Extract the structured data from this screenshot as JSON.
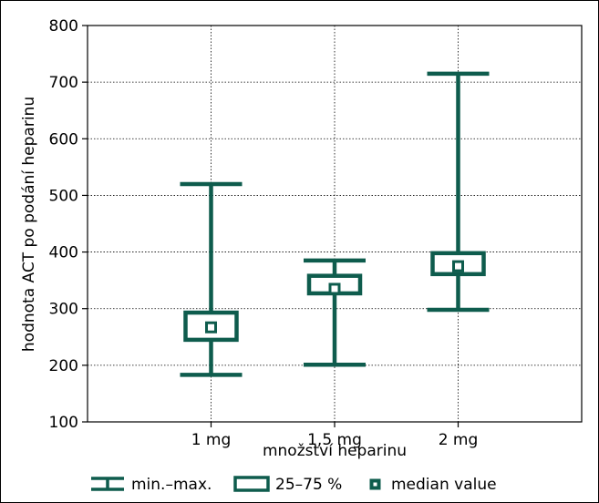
{
  "chart_data": {
    "type": "box",
    "categories": [
      "1 mg",
      "1,5 mg",
      "2 mg"
    ],
    "xlabel": "množství heparinu",
    "ylabel": "hodnota ACT po podání heparinu",
    "ylim": [
      100,
      800
    ],
    "yticks": [
      "100",
      "200",
      "300",
      "400",
      "500",
      "600",
      "700",
      "800"
    ],
    "grid": true,
    "series_color": "#0e5c4d",
    "boxes": [
      {
        "category": "1 mg",
        "min": 183,
        "q1": 245,
        "median": 267,
        "q3": 293,
        "max": 520
      },
      {
        "category": "1,5 mg",
        "min": 201,
        "q1": 327,
        "median": 335,
        "q3": 358,
        "max": 385
      },
      {
        "category": "2 mg",
        "min": 298,
        "q1": 361,
        "median": 375,
        "q3": 398,
        "max": 715
      }
    ],
    "legend": {
      "position": "bottom",
      "items": [
        {
          "key": "whisker",
          "label": "min.–max."
        },
        {
          "key": "box",
          "label": "25–75 %"
        },
        {
          "key": "median",
          "label": "median value"
        }
      ]
    }
  }
}
